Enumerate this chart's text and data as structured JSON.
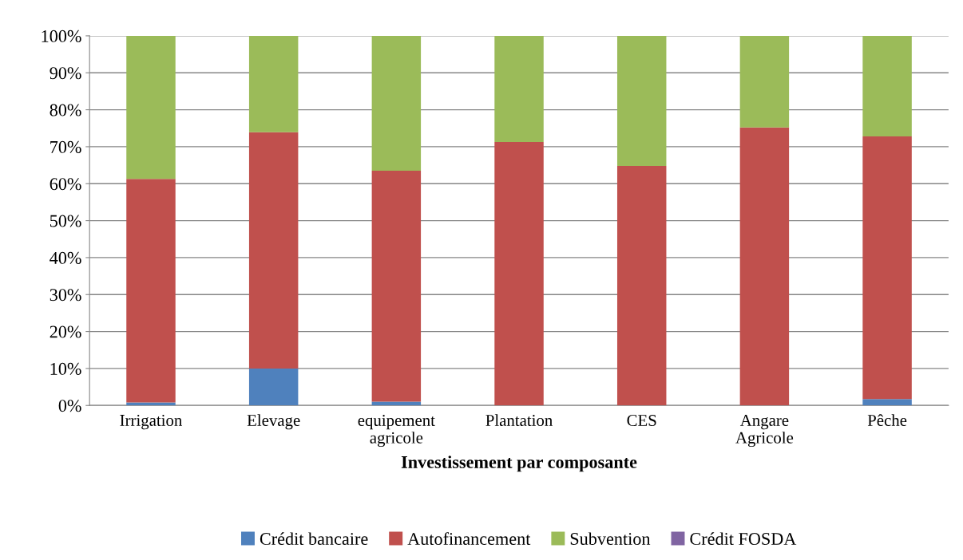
{
  "chart_data": {
    "type": "bar",
    "stacked": true,
    "xlabel": "Investissement par composante",
    "categories": [
      "Irrigation",
      "Elevage",
      "equipement\nagricole",
      "Plantation",
      "CES",
      "Angare\nAgricole",
      "Pêche"
    ],
    "series": [
      {
        "name": "Crédit bancaire",
        "color": "#4f81bd",
        "values": [
          0.8,
          10,
          1,
          0,
          0,
          0,
          1.7
        ]
      },
      {
        "name": "Autofinancement",
        "color": "#c0504d",
        "values": [
          60.5,
          63.9,
          62.5,
          71.3,
          64.8,
          75.2,
          71.1
        ]
      },
      {
        "name": "Subvention",
        "color": "#9bbb59",
        "values": [
          38.7,
          26.1,
          36.5,
          28.7,
          35.2,
          24.8,
          27.2
        ]
      },
      {
        "name": "Crédit FOSDA",
        "color": "#8064a2",
        "values": [
          0,
          0,
          0,
          0,
          0,
          0,
          0
        ]
      }
    ],
    "ylim": [
      0,
      100
    ],
    "yticks": [
      {
        "value": 0,
        "label": "0%"
      },
      {
        "value": 10,
        "label": "10%"
      },
      {
        "value": 20,
        "label": "20%"
      },
      {
        "value": 30,
        "label": "30%"
      },
      {
        "value": 40,
        "label": "40%"
      },
      {
        "value": 50,
        "label": "50%"
      },
      {
        "value": 60,
        "label": "60%"
      },
      {
        "value": 70,
        "label": "70%"
      },
      {
        "value": 80,
        "label": "80%"
      },
      {
        "value": 90,
        "label": "90%"
      },
      {
        "value": 100,
        "label": "100%"
      }
    ],
    "grid": "y",
    "legend": "bottom"
  }
}
